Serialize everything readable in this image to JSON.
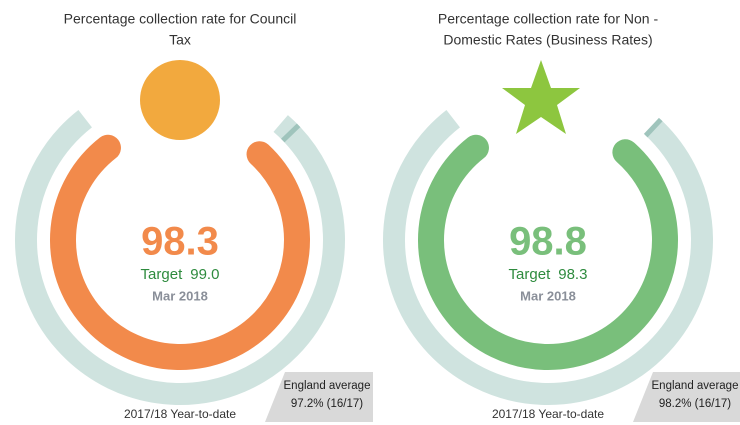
{
  "chart_data": [
    {
      "type": "gauge",
      "title": [
        "Percentage collection rate for Council",
        "Tax"
      ],
      "value": 98.3,
      "color": "#f28a4b",
      "target_text": "Target",
      "target": {
        "value": 99,
        "label": "99.0"
      },
      "date": "Mar 2018",
      "period": "2017/18 Year-to-date",
      "average_text": "England average",
      "england_average": {
        "value": 97.2,
        "label": "97.2% (16/17)"
      },
      "ylim": [
        0,
        100
      ]
    },
    {
      "type": "gauge",
      "title": [
        "Percentage collection rate for Non -",
        "Domestic Rates (Business Rates)"
      ],
      "value": 98.8,
      "color": "#79bf7b",
      "target_text": "Target",
      "target": {
        "value": 98.3,
        "label": "98.3"
      },
      "date": "Mar 2018",
      "period": "2017/18 Year-to-date",
      "average_text": "England average",
      "england_average": {
        "value": 98.2,
        "label": "98.2% (16/17)"
      },
      "ylim": [
        0,
        100
      ]
    }
  ]
}
